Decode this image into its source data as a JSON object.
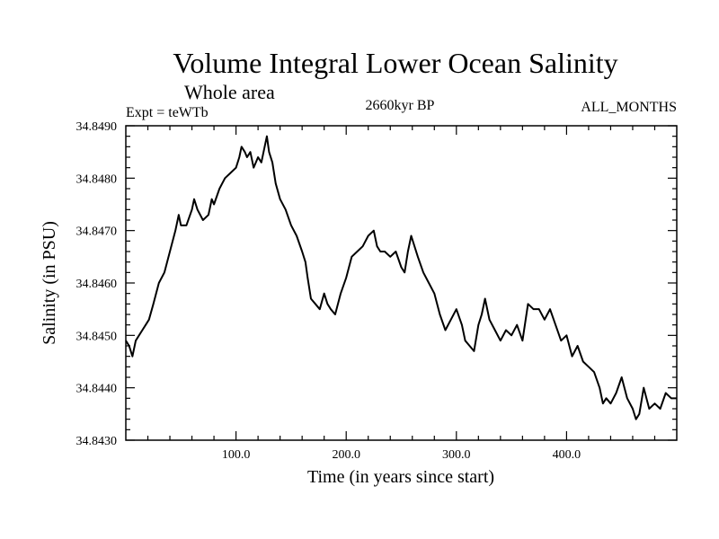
{
  "chart_data": {
    "type": "line",
    "title": "Volume Integral Lower Ocean Salinity",
    "subtitle": "Whole area",
    "experiment_label": "Expt = teWTb",
    "center_label": "2660kyr BP",
    "right_label": "ALL_MONTHS",
    "xlabel": "Time (in years since start)",
    "ylabel": "Salinity (in PSU)",
    "xlim": [
      0,
      500
    ],
    "ylim": [
      34.843,
      34.849
    ],
    "x_ticks": [
      100,
      200,
      300,
      400
    ],
    "x_tick_labels": [
      "100.0",
      "200.0",
      "300.0",
      "400.0"
    ],
    "y_ticks": [
      34.843,
      34.844,
      34.845,
      34.846,
      34.847,
      34.848,
      34.849
    ],
    "y_tick_labels": [
      "34.8430",
      "34.8440",
      "34.8450",
      "34.8460",
      "34.8470",
      "34.8480",
      "34.8490"
    ],
    "grid": false,
    "series": [
      {
        "name": "salinity",
        "color": "#000000",
        "x": [
          0,
          3,
          6,
          9,
          12,
          15,
          18,
          21,
          25,
          30,
          35,
          40,
          45,
          48,
          50,
          55,
          60,
          62,
          65,
          70,
          75,
          78,
          80,
          85,
          90,
          95,
          100,
          103,
          105,
          108,
          110,
          113,
          116,
          118,
          120,
          123,
          126,
          128,
          130,
          133,
          136,
          140,
          145,
          150,
          155,
          160,
          163,
          165,
          168,
          172,
          176,
          180,
          183,
          186,
          190,
          195,
          200,
          205,
          210,
          215,
          220,
          225,
          228,
          231,
          235,
          240,
          245,
          250,
          253,
          256,
          259,
          262,
          265,
          270,
          275,
          280,
          285,
          290,
          295,
          300,
          305,
          308,
          312,
          316,
          320,
          323,
          326,
          330,
          335,
          340,
          345,
          350,
          355,
          360,
          365,
          370,
          375,
          380,
          385,
          390,
          395,
          400,
          405,
          410,
          415,
          420,
          425,
          430,
          433,
          436,
          440,
          445,
          450,
          455,
          460,
          463,
          466,
          470,
          475,
          480,
          485,
          490,
          495,
          500
        ],
        "values": [
          34.8449,
          34.8448,
          34.8446,
          34.8449,
          34.845,
          34.8451,
          34.8452,
          34.8453,
          34.8456,
          34.846,
          34.8462,
          34.8466,
          34.847,
          34.8473,
          34.8471,
          34.8471,
          34.8474,
          34.8476,
          34.8474,
          34.8472,
          34.8473,
          34.8476,
          34.8475,
          34.8478,
          34.848,
          34.8481,
          34.8482,
          34.8484,
          34.8486,
          34.8485,
          34.8484,
          34.8485,
          34.8482,
          34.8483,
          34.8484,
          34.8483,
          34.8486,
          34.8488,
          34.8485,
          34.8483,
          34.8479,
          34.8476,
          34.8474,
          34.8471,
          34.8469,
          34.8466,
          34.8464,
          34.8461,
          34.8457,
          34.8456,
          34.8455,
          34.8458,
          34.8456,
          34.8455,
          34.8454,
          34.8458,
          34.8461,
          34.8465,
          34.8466,
          34.8467,
          34.8469,
          34.847,
          34.8467,
          34.8466,
          34.8466,
          34.8465,
          34.8466,
          34.8463,
          34.8462,
          34.8466,
          34.8469,
          34.8467,
          34.8465,
          34.8462,
          34.846,
          34.8458,
          34.8454,
          34.8451,
          34.8453,
          34.8455,
          34.8452,
          34.8449,
          34.8448,
          34.8447,
          34.8452,
          34.8454,
          34.8457,
          34.8453,
          34.8451,
          34.8449,
          34.8451,
          34.845,
          34.8452,
          34.8449,
          34.8456,
          34.8455,
          34.8455,
          34.8453,
          34.8455,
          34.8452,
          34.8449,
          34.845,
          34.8446,
          34.8448,
          34.8445,
          34.8444,
          34.8443,
          34.844,
          34.8437,
          34.8438,
          34.8437,
          34.8439,
          34.8442,
          34.8438,
          34.8436,
          34.8434,
          34.8435,
          34.844,
          34.8436,
          34.8437,
          34.8436,
          34.8439,
          34.8438,
          34.8438
        ]
      }
    ]
  }
}
